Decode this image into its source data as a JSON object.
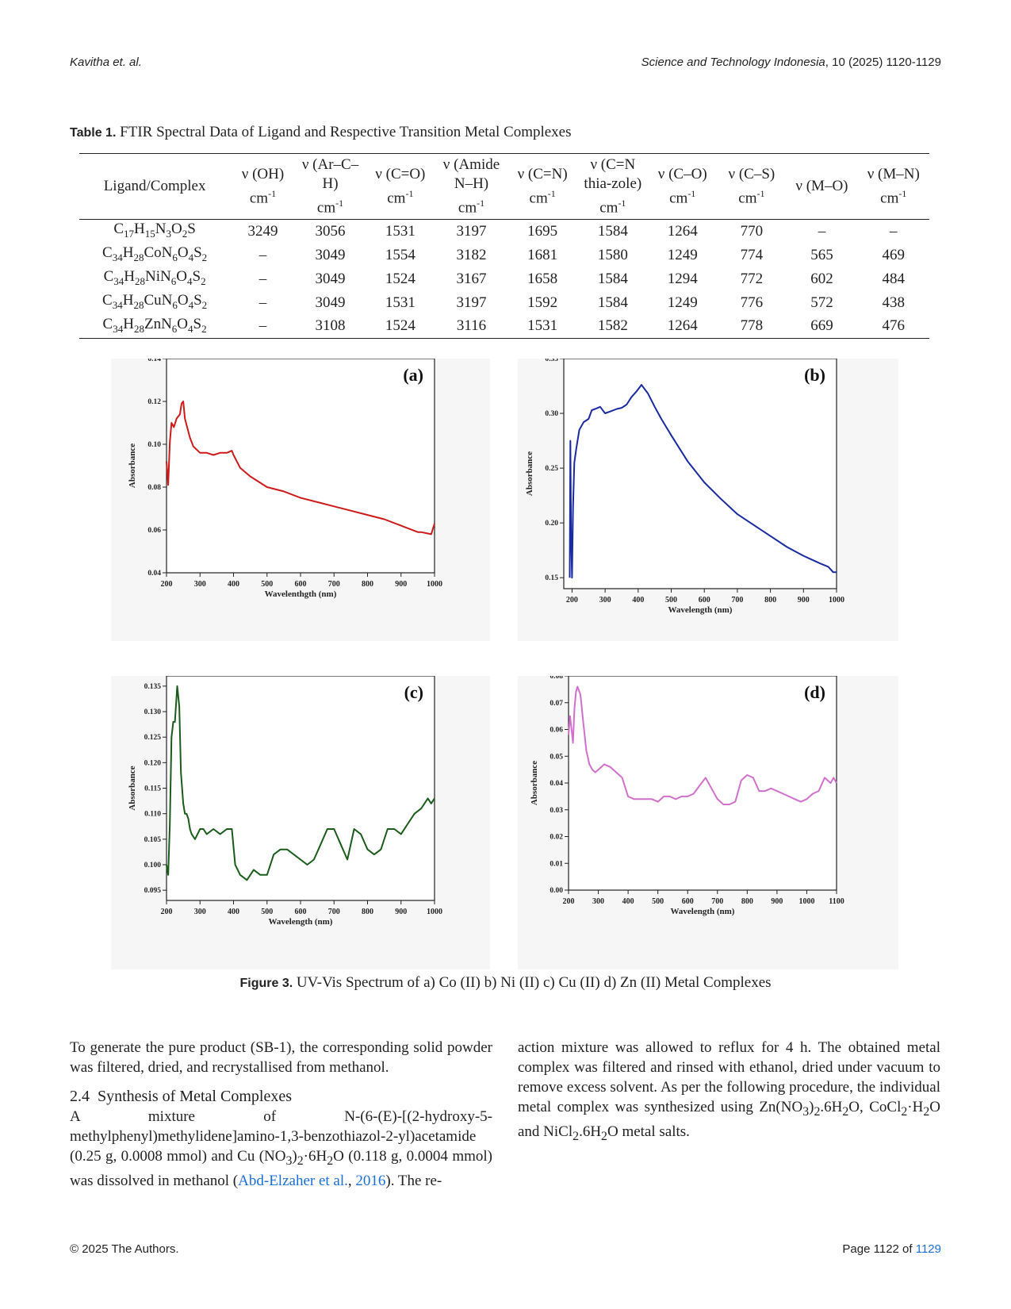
{
  "header": {
    "left": "Kavitha et. al.",
    "right_journal": "Science and Technology Indonesia",
    "right_rest": ", 10 (2025) 1120-1129"
  },
  "table": {
    "label": "Table 1.",
    "caption": " FTIR Spectral Data of Ligand and Respective Transition Metal Complexes",
    "columns": [
      "Ligand/Complex",
      "ν (OH)",
      "ν (Ar–C–H)",
      "ν (C=O)",
      "ν (Amide N–H)",
      "ν (C=N)",
      "ν (C=N thia-zole)",
      "ν (C–O)",
      "ν (C–S)",
      "ν (M–O)",
      "ν (M–N)"
    ],
    "unit": "cm-1",
    "rows": [
      {
        "formula": "C17H15N3O2S",
        "values": [
          "3249",
          "3056",
          "1531",
          "3197",
          "1695",
          "1584",
          "1264",
          "770",
          "–",
          "–"
        ]
      },
      {
        "formula": "C34H28CoN6O4S2",
        "values": [
          "–",
          "3049",
          "1554",
          "3182",
          "1681",
          "1580",
          "1249",
          "774",
          "565",
          "469"
        ]
      },
      {
        "formula": "C34H28NiN6O4S2",
        "values": [
          "–",
          "3049",
          "1524",
          "3167",
          "1658",
          "1584",
          "1294",
          "772",
          "602",
          "484"
        ]
      },
      {
        "formula": "C34H28CuN6O4S2",
        "values": [
          "–",
          "3049",
          "1531",
          "3197",
          "1592",
          "1584",
          "1249",
          "776",
          "572",
          "438"
        ]
      },
      {
        "formula": "C34H28ZnN6O4S2",
        "values": [
          "–",
          "3108",
          "1524",
          "3116",
          "1531",
          "1582",
          "1264",
          "778",
          "669",
          "476"
        ]
      }
    ]
  },
  "chart_data": [
    {
      "type": "line",
      "panel": "(a)",
      "color": "#cc1a1a",
      "xlabel": "Wavelenthgth (nm)",
      "ylabel": "Absorbance",
      "xlim": [
        200,
        1000
      ],
      "ylim": [
        0.04,
        0.14
      ],
      "xticks": [
        "200",
        "300",
        "400",
        "500",
        "600",
        "700",
        "800",
        "900",
        "1000"
      ],
      "yticks": [
        "0.04",
        "0.06",
        "0.08",
        "0.10",
        "0.12",
        "0.14"
      ],
      "x": [
        200,
        205,
        210,
        215,
        222,
        230,
        240,
        245,
        250,
        255,
        260,
        270,
        280,
        300,
        320,
        340,
        360,
        380,
        395,
        400,
        420,
        450,
        500,
        550,
        600,
        650,
        700,
        750,
        800,
        850,
        900,
        950,
        960,
        990,
        1000
      ],
      "y": [
        0.092,
        0.081,
        0.101,
        0.11,
        0.108,
        0.112,
        0.114,
        0.119,
        0.12,
        0.112,
        0.109,
        0.103,
        0.099,
        0.096,
        0.096,
        0.095,
        0.096,
        0.096,
        0.097,
        0.095,
        0.089,
        0.085,
        0.08,
        0.078,
        0.075,
        0.073,
        0.071,
        0.069,
        0.067,
        0.065,
        0.062,
        0.059,
        0.059,
        0.058,
        0.063
      ]
    },
    {
      "type": "line",
      "panel": "(b)",
      "color": "#1a2aa0",
      "xlabel": "Wavelength (nm)",
      "ylabel": "Absorbance",
      "xlim": [
        175,
        1000
      ],
      "ylim": [
        0.14,
        0.35
      ],
      "xticks": [
        "200",
        "300",
        "400",
        "500",
        "600",
        "700",
        "800",
        "900",
        "1000"
      ],
      "yticks": [
        "0.15",
        "0.20",
        "0.25",
        "0.30",
        "0.35"
      ],
      "x": [
        193,
        195,
        197,
        200,
        203,
        207,
        213,
        222,
        235,
        250,
        260,
        270,
        285,
        300,
        318,
        335,
        350,
        365,
        380,
        395,
        410,
        430,
        450,
        470,
        500,
        550,
        600,
        650,
        700,
        750,
        800,
        850,
        900,
        950,
        975,
        990,
        1000
      ],
      "y": [
        0.15,
        0.275,
        0.19,
        0.15,
        0.215,
        0.255,
        0.268,
        0.285,
        0.292,
        0.295,
        0.303,
        0.304,
        0.306,
        0.3,
        0.302,
        0.304,
        0.305,
        0.308,
        0.315,
        0.32,
        0.326,
        0.318,
        0.306,
        0.295,
        0.28,
        0.256,
        0.237,
        0.222,
        0.208,
        0.198,
        0.188,
        0.178,
        0.17,
        0.163,
        0.16,
        0.155,
        0.155
      ]
    },
    {
      "type": "line",
      "panel": "(c)",
      "color": "#1a5c1a",
      "xlabel": "Wavelength (nm)",
      "ylabel": "Absorbance",
      "xlim": [
        200,
        1000
      ],
      "ylim": [
        0.093,
        0.137
      ],
      "xticks": [
        "200",
        "300",
        "400",
        "500",
        "600",
        "700",
        "800",
        "900",
        "1000"
      ],
      "yticks": [
        "0.095",
        "0.100",
        "0.105",
        "0.110",
        "0.115",
        "0.120",
        "0.125",
        "0.130",
        "0.135"
      ],
      "x": [
        200,
        205,
        210,
        215,
        220,
        225,
        232,
        238,
        243,
        250,
        255,
        260,
        265,
        270,
        275,
        285,
        300,
        310,
        320,
        340,
        360,
        380,
        395,
        405,
        420,
        440,
        460,
        480,
        500,
        520,
        540,
        560,
        580,
        600,
        620,
        640,
        660,
        680,
        700,
        720,
        740,
        760,
        780,
        800,
        820,
        840,
        860,
        880,
        900,
        920,
        940,
        960,
        980,
        990,
        1000
      ],
      "y": [
        0.1,
        0.098,
        0.108,
        0.125,
        0.128,
        0.128,
        0.135,
        0.131,
        0.118,
        0.112,
        0.11,
        0.11,
        0.109,
        0.107,
        0.106,
        0.105,
        0.107,
        0.107,
        0.106,
        0.107,
        0.106,
        0.107,
        0.107,
        0.1,
        0.098,
        0.097,
        0.099,
        0.098,
        0.098,
        0.102,
        0.103,
        0.103,
        0.102,
        0.101,
        0.1,
        0.101,
        0.104,
        0.107,
        0.107,
        0.104,
        0.101,
        0.107,
        0.106,
        0.103,
        0.102,
        0.103,
        0.107,
        0.107,
        0.106,
        0.108,
        0.11,
        0.111,
        0.113,
        0.112,
        0.113
      ]
    },
    {
      "type": "line",
      "panel": "(d)",
      "color": "#d070cc",
      "xlabel": "Wavelength (nm)",
      "ylabel": "Absorbance",
      "xlim": [
        200,
        1100
      ],
      "ylim": [
        0.0,
        0.08
      ],
      "xticks": [
        "200",
        "300",
        "400",
        "500",
        "600",
        "700",
        "800",
        "900",
        "1000",
        "1100"
      ],
      "yticks": [
        "0.00",
        "0.01",
        "0.02",
        "0.03",
        "0.04",
        "0.05",
        "0.06",
        "0.07",
        "0.08"
      ],
      "x": [
        200,
        205,
        210,
        215,
        220,
        225,
        230,
        240,
        250,
        260,
        270,
        280,
        290,
        300,
        320,
        340,
        360,
        380,
        400,
        420,
        450,
        480,
        500,
        520,
        540,
        560,
        580,
        600,
        620,
        640,
        660,
        680,
        700,
        720,
        740,
        760,
        780,
        800,
        820,
        840,
        860,
        880,
        900,
        920,
        940,
        960,
        980,
        1000,
        1020,
        1040,
        1060,
        1080,
        1090,
        1100
      ],
      "y": [
        0.058,
        0.065,
        0.06,
        0.055,
        0.068,
        0.074,
        0.076,
        0.073,
        0.062,
        0.052,
        0.047,
        0.045,
        0.044,
        0.045,
        0.047,
        0.046,
        0.044,
        0.042,
        0.035,
        0.034,
        0.034,
        0.034,
        0.033,
        0.035,
        0.035,
        0.034,
        0.035,
        0.035,
        0.036,
        0.039,
        0.042,
        0.038,
        0.034,
        0.032,
        0.032,
        0.033,
        0.041,
        0.043,
        0.042,
        0.037,
        0.037,
        0.038,
        0.037,
        0.036,
        0.035,
        0.034,
        0.033,
        0.034,
        0.036,
        0.037,
        0.042,
        0.04,
        0.042,
        0.04
      ]
    }
  ],
  "figure": {
    "label": "Figure 3.",
    "caption": " UV-Vis Spectrum of a) Co (II) b) Ni (II) c) Cu (II) d) Zn (II) Metal Complexes"
  },
  "body": {
    "left_para1": "To generate the pure product (SB-1), the corresponding solid powder was filtered, dried, and recrystallised from methanol.",
    "section_number": "2.4",
    "section_title": "Synthesis of Metal Complexes",
    "left_para2_a": "A mixture of N-(6-(E)-[(2-hydroxy-5-methylphenyl)methylidene]amino-1,3-benzothiazol-2-yl)acetamide (0.25 g, 0.0008 mmol) and Cu (NO",
    "left_para2_b": "·6H",
    "left_para2_c": "O (0.118 g, 0.0004 mmol) was dissolved in methanol (",
    "ref_author": "Abd-Elzaher et al.",
    "ref_year": "2016",
    "left_para2_d": "). The re-",
    "right_para_a": "action mixture was allowed to reflux for 4 h. The obtained metal complex was filtered and rinsed with ethanol, dried under vacuum to remove excess solvent. As per the following procedure, the individual metal complex was synthesized using Zn(NO",
    "right_para_b": ".6H",
    "right_para_c": "O, CoCl",
    "right_para_d": "·H",
    "right_para_e": "O and NiCl",
    "right_para_f": ".6H",
    "right_para_g": "O metal salts."
  },
  "footer": {
    "left": "© 2025 The Authors.",
    "right_prefix": "Page 1122 of ",
    "right_total": "1129"
  }
}
